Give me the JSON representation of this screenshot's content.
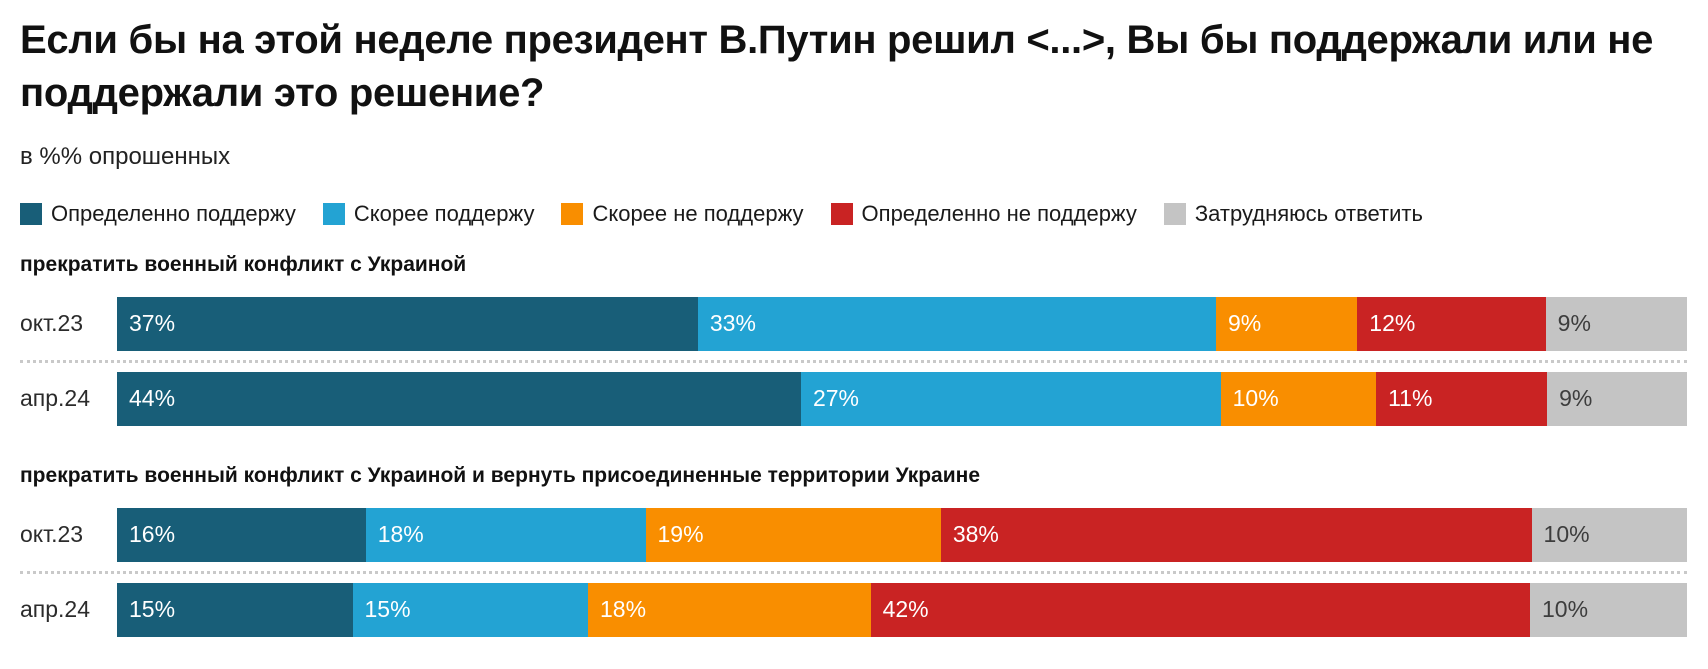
{
  "title": "Если бы на этой неделе президент В.Путин решил <...>, Вы бы поддержали или не поддержали это решение?",
  "subtitle": "в %% опрошенных",
  "chart_data": {
    "type": "bar",
    "variant": "horizontal-stacked",
    "unit": "%",
    "xlim": [
      0,
      100
    ],
    "grid": false,
    "legend_position": "top",
    "legend": [
      {
        "label": "Определенно поддержу",
        "color": "#185e78",
        "text_color": "#ffffff"
      },
      {
        "label": "Скорее поддержу",
        "color": "#23a3d3",
        "text_color": "#ffffff"
      },
      {
        "label": "Скорее не поддержу",
        "color": "#f98e00",
        "text_color": "#ffffff"
      },
      {
        "label": "Определенно не поддержу",
        "color": "#c92323",
        "text_color": "#ffffff"
      },
      {
        "label": "Затрудняюсь ответить",
        "color": "#c4c4c4",
        "text_color": "#3d3d3d"
      }
    ],
    "sections": [
      {
        "heading": "прекратить военный конфликт с Украиной",
        "rows": [
          {
            "label": "окт.23",
            "values": [
              37,
              33,
              9,
              12,
              9
            ]
          },
          {
            "label": "апр.24",
            "values": [
              44,
              27,
              10,
              11,
              9
            ]
          }
        ]
      },
      {
        "heading": "прекратить военный конфликт с Украиной и вернуть присоединенные территории Украине",
        "rows": [
          {
            "label": "окт.23",
            "values": [
              16,
              18,
              19,
              38,
              10
            ]
          },
          {
            "label": "апр.24",
            "values": [
              15,
              15,
              18,
              42,
              10
            ]
          }
        ]
      }
    ]
  }
}
